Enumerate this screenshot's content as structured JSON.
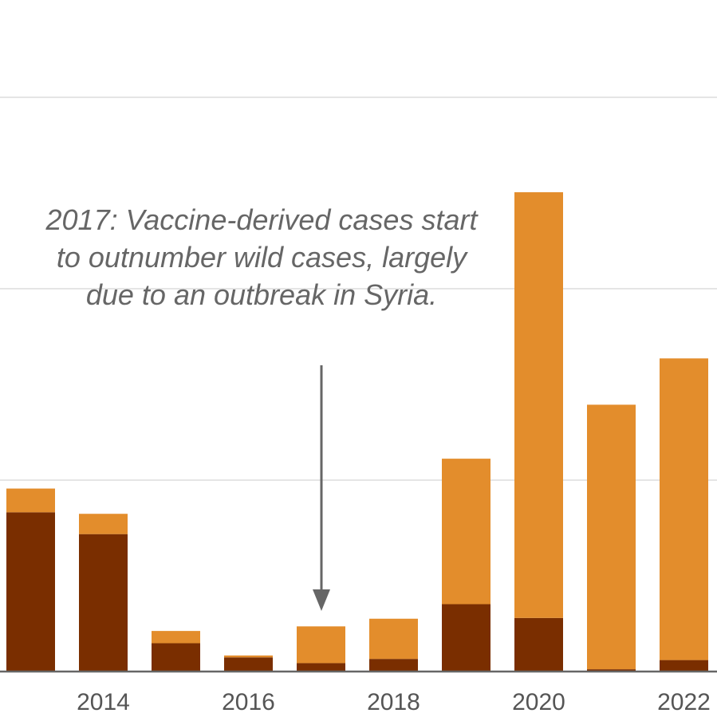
{
  "chart_data": {
    "type": "bar",
    "stacked": true,
    "categories": [
      "2013",
      "2014",
      "2015",
      "2016",
      "2017",
      "2018",
      "2019",
      "2020",
      "2021",
      "2022"
    ],
    "series": [
      {
        "values": [
          416,
          359,
          74,
          37,
          22,
          33,
          176,
          140,
          6,
          30
        ],
        "color": "#7a2e00"
      },
      {
        "values": [
          62,
          53,
          32,
          5,
          96,
          105,
          380,
          1112,
          691,
          788
        ],
        "color": "#e38d2c"
      }
    ],
    "ylim": [
      0,
      1500
    ],
    "y_gridlines": [
      500,
      1000,
      1500
    ],
    "x_tick_labels": [
      "2014",
      "2016",
      "2018",
      "2020",
      "2022"
    ],
    "grid": true,
    "legend": "none",
    "annotation": {
      "text": "2017: Vaccine-derived cases start to outnumber wild cases, largely due to an outbreak in Syria.",
      "target_category": "2017"
    }
  }
}
